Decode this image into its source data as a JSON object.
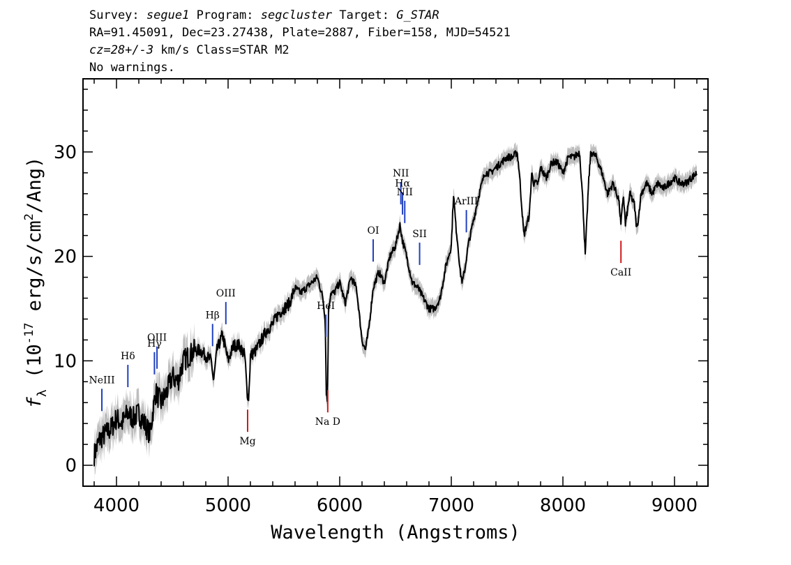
{
  "header": {
    "survey_label": "Survey:",
    "survey": "segue1",
    "program_label": "Program:",
    "program": "segcluster",
    "target_label": "Target:",
    "target": "G_STAR",
    "line2": "RA=91.45091, Dec=23.27438, Plate=2887, Fiber=158, MJD=54521",
    "cz": "cz=28+/-3",
    "cz_rest": " km/s Class=STAR M2",
    "line4": "No warnings."
  },
  "chart_data": {
    "type": "line",
    "xlabel": "Wavelength (Angstroms)",
    "ylabel": "f_λ (10^-17 erg/s/cm^2/Ang)",
    "xlim": [
      3700,
      9300
    ],
    "ylim": [
      -2,
      37
    ],
    "xticks": [
      4000,
      5000,
      6000,
      7000,
      8000,
      9000
    ],
    "yticks": [
      0,
      10,
      20,
      30
    ],
    "colors": {
      "flux": "#000000",
      "error_band": "#bdbdbd",
      "emission": "#1f3fbf",
      "absorption": "#d11a1a"
    },
    "series": [
      {
        "x": [
          3800,
          3850,
          3900,
          3950,
          4000,
          4050,
          4100,
          4150,
          4200,
          4250,
          4300,
          4350,
          4400,
          4450,
          4500,
          4550,
          4600,
          4650,
          4700,
          4750,
          4800,
          4850,
          4870,
          4900,
          4950,
          5000,
          5050,
          5100,
          5150,
          5170,
          5185,
          5200,
          5250,
          5300,
          5350,
          5400,
          5450,
          5500,
          5550,
          5600,
          5650,
          5700,
          5750,
          5800,
          5850,
          5870,
          5880,
          5890,
          5900,
          5920,
          5950,
          6000,
          6050,
          6100,
          6150,
          6200,
          6230,
          6260,
          6300,
          6350,
          6400,
          6450,
          6500,
          6540,
          6563,
          6600,
          6650,
          6700,
          6750,
          6800,
          6850,
          6900,
          6950,
          7000,
          7020,
          7040,
          7060,
          7080,
          7100,
          7125,
          7150,
          7200,
          7250,
          7300,
          7350,
          7400,
          7450,
          7500,
          7550,
          7590,
          7610,
          7650,
          7700,
          7720,
          7740,
          7780,
          7800,
          7850,
          7900,
          7950,
          8000,
          8050,
          8100,
          8150,
          8180,
          8200,
          8230,
          8250,
          8300,
          8350,
          8400,
          8450,
          8480,
          8500,
          8520,
          8542,
          8560,
          8600,
          8640,
          8662,
          8680,
          8700,
          8750,
          8800,
          8850,
          8900,
          8950,
          9000,
          9050,
          9100,
          9150,
          9200
        ],
        "y": [
          1,
          2.5,
          3,
          3.5,
          4.5,
          4,
          5,
          4.5,
          5,
          4,
          3,
          7,
          6,
          7,
          8.5,
          8,
          10,
          10.5,
          11,
          11,
          10.5,
          10,
          8,
          11,
          12.5,
          10,
          11.5,
          11.5,
          10.5,
          7,
          6.5,
          10.5,
          11,
          12,
          13,
          13.5,
          14.5,
          15,
          15.5,
          17,
          16.5,
          17,
          17.5,
          18,
          16,
          14,
          7,
          6,
          15,
          16.5,
          16.5,
          17.5,
          15.5,
          18,
          17,
          12,
          11,
          13,
          17,
          18.5,
          17.5,
          20,
          21,
          23,
          21.5,
          20,
          17.5,
          17,
          16,
          15,
          15,
          16,
          19,
          21,
          26,
          23,
          21,
          18.5,
          17.5,
          19,
          21,
          23.5,
          26,
          28,
          28,
          28.5,
          29,
          29.5,
          29.5,
          30,
          28,
          22,
          24,
          28,
          27,
          27,
          28.5,
          27.5,
          29,
          29,
          28,
          29.5,
          29.5,
          30,
          25,
          20,
          27,
          30,
          29.5,
          28,
          26,
          27,
          26,
          25.5,
          23,
          26,
          23,
          26,
          25,
          22.5,
          24,
          26,
          27,
          26,
          27,
          26.5,
          27,
          27.5,
          27,
          27,
          27.5,
          28
        ]
      }
    ],
    "spectral_lines": [
      {
        "name": "NeIII",
        "wavelength": 3869,
        "color": "emission"
      },
      {
        "name": "Hδ",
        "wavelength": 4102,
        "color": "emission"
      },
      {
        "name": "Hγ",
        "wavelength": 4340,
        "color": "emission"
      },
      {
        "name": "OIII",
        "wavelength": 4363,
        "color": "emission"
      },
      {
        "name": "Hβ",
        "wavelength": 4861,
        "color": "emission"
      },
      {
        "name": "OIII",
        "wavelength": 4980,
        "color": "emission"
      },
      {
        "name": "Mg",
        "wavelength": 5175,
        "color": "absorption"
      },
      {
        "name": "HeI",
        "wavelength": 5876,
        "color": "emission"
      },
      {
        "name": "Na D",
        "wavelength": 5893,
        "color": "absorption"
      },
      {
        "name": "OI",
        "wavelength": 6300,
        "color": "emission"
      },
      {
        "name": "NII",
        "wavelength": 6548,
        "color": "emission"
      },
      {
        "name": "Hα",
        "wavelength": 6563,
        "color": "emission"
      },
      {
        "name": "NII",
        "wavelength": 6583,
        "color": "emission"
      },
      {
        "name": "SII",
        "wavelength": 6716,
        "color": "emission"
      },
      {
        "name": "ArIII",
        "wavelength": 7135,
        "color": "emission"
      },
      {
        "name": "CaII",
        "wavelength": 8520,
        "color": "absorption"
      }
    ]
  }
}
